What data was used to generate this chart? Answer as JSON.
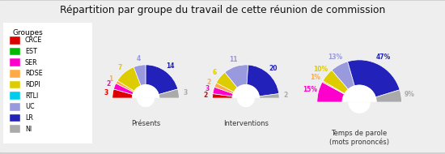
{
  "title": "Répartition par groupe du travail de cette réunion de commission",
  "groups": [
    "CRCE",
    "EST",
    "SER",
    "RDSE",
    "RDPI",
    "RTLI",
    "UC",
    "LR",
    "NI"
  ],
  "colors": [
    "#dd0000",
    "#00bb00",
    "#ff00cc",
    "#ffaa44",
    "#ddcc00",
    "#00ccee",
    "#9999dd",
    "#2222bb",
    "#aaaaaa"
  ],
  "presents": [
    3,
    0,
    2,
    1,
    7,
    0,
    4,
    14,
    3
  ],
  "interventions": [
    2,
    0,
    3,
    2,
    6,
    0,
    11,
    20,
    2
  ],
  "temps_parole_pct": [
    0,
    0,
    15,
    1,
    10,
    0,
    13,
    47,
    9
  ],
  "chart_titles": [
    "Présents",
    "Interventions",
    "Temps de parole\n(mots prononcés)"
  ],
  "bg_color": "#eeeeee",
  "border_color": "#cccccc",
  "white": "#ffffff"
}
